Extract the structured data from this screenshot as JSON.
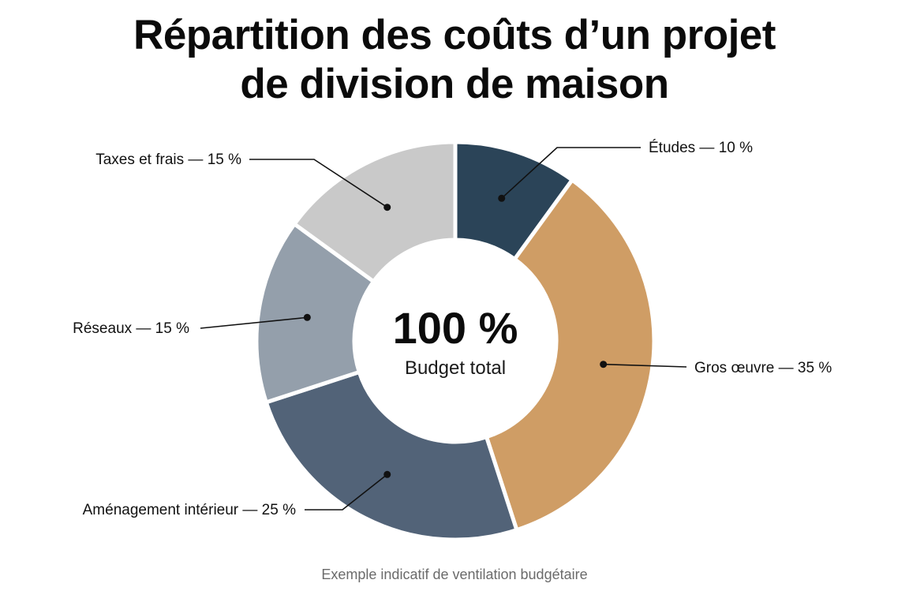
{
  "title_lines": [
    "Répartition des coûts d’un projet",
    "de division de maison"
  ],
  "center": {
    "value": "100 %",
    "caption": "Budget total"
  },
  "footnote": "Exemple indicatif de ventilation budgétaire",
  "chart_data": {
    "type": "pie",
    "donut": true,
    "title": "Répartition des coûts d’un projet de division de maison",
    "slices": [
      {
        "name": "Études",
        "value": 10,
        "label": "Études — 10 %",
        "color": "#2b4458"
      },
      {
        "name": "Gros œuvre",
        "value": 35,
        "label": "Gros œuvre — 35 %",
        "color": "#cf9d65"
      },
      {
        "name": "Aménagement intérieur",
        "value": 25,
        "label": "Aménagement intérieur — 25 %",
        "color": "#526378"
      },
      {
        "name": "Réseaux",
        "value": 15,
        "label": "Réseaux — 15 %",
        "color": "#949fab"
      },
      {
        "name": "Taxes et frais",
        "value": 15,
        "label": "Taxes et frais — 15 %",
        "color": "#c9c9c9"
      }
    ],
    "start_angle_deg": 0,
    "direction": "clockwise",
    "center_text": "100 %",
    "center_caption": "Budget total"
  }
}
